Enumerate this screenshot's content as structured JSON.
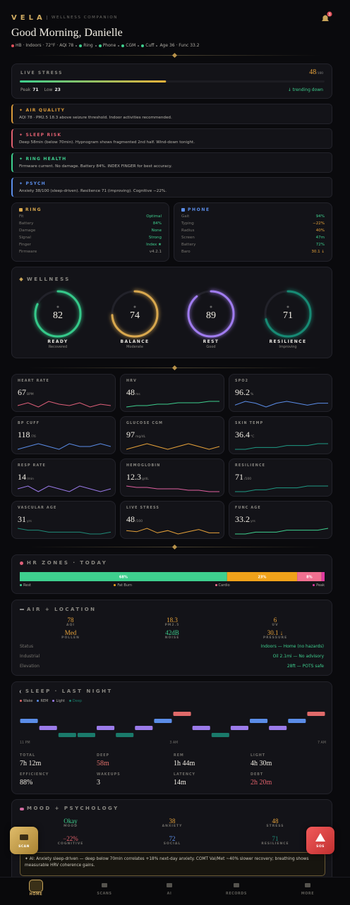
{
  "header": {
    "brand": "VELA",
    "tagline": "WELLNESS COMPANION",
    "notifications": 3,
    "greeting": "Good Morning, Danielle",
    "status": [
      {
        "text": "HB · Indoors · 72°F · AQI 78"
      },
      {
        "text": "Ring",
        "color": "#3ecf8e"
      },
      {
        "text": "Phone",
        "color": "#3ecf8e"
      },
      {
        "text": "CGM",
        "color": "#3ecf8e"
      },
      {
        "text": "Cuff",
        "color": "#3ecf8e"
      },
      {
        "text": "Age 36 · Func 33.2"
      }
    ]
  },
  "live_stress": {
    "label": "LIVE STRESS",
    "value": 48,
    "unit": "/100",
    "range": [
      0,
      100
    ],
    "peak_label": "Peak",
    "peak": 71,
    "low_label": "Low",
    "low": 23,
    "trend": "↓ trending down"
  },
  "alerts": [
    {
      "title": "✦ AIR QUALITY",
      "text": "AQI 78 · PM2.5 18.3 above seizure threshold. Indoor activities recommended.",
      "color": "#d99a3a"
    },
    {
      "title": "✦ SLEEP RISK",
      "text": "Deep 58min (below 70min). Hypnogram shows fragmented 2nd half. Wind-down tonight.",
      "color": "#e06070"
    },
    {
      "title": "✦ RING HEALTH",
      "text": "Firmware current. No damage. Battery 84%. INDEX FINGER for best accuracy.",
      "color": "#3ecf8e"
    },
    {
      "title": "✦ PSYCH",
      "text": "Anxiety 38/100 (sleep-driven). Resilience 71 (improving). Cognitive −22%.",
      "color": "#5b8de8"
    }
  ],
  "ring": {
    "title": "RING",
    "color": "#d9a84e",
    "rows": [
      {
        "label": "Fit",
        "value": "Optimal",
        "color": "#3ecf8e"
      },
      {
        "label": "Battery",
        "value": "84%",
        "color": "#3ecf8e"
      },
      {
        "label": "Damage",
        "value": "None",
        "color": "#3ecf8e"
      },
      {
        "label": "Signal",
        "value": "Strong",
        "color": "#3ecf8e"
      },
      {
        "label": "Finger",
        "value": "Index ★",
        "color": "#3ecf8e"
      },
      {
        "label": "Firmware",
        "value": "v4.2.1",
        "color": "#9a9890"
      }
    ]
  },
  "phone": {
    "title": "PHONE",
    "color": "#5b8de8",
    "rows": [
      {
        "label": "Gait",
        "value": "94%",
        "color": "#3ecf8e"
      },
      {
        "label": "Typing",
        "value": "−22%",
        "color": "#e8a33a"
      },
      {
        "label": "Radius",
        "value": "40%",
        "color": "#e8a33a"
      },
      {
        "label": "Screen",
        "value": "47m",
        "color": "#3ecf8e"
      },
      {
        "label": "Battery",
        "value": "72%",
        "color": "#3ecf8e"
      },
      {
        "label": "Baro",
        "value": "30.1 ↓",
        "color": "#e8a33a"
      }
    ]
  },
  "wellness": {
    "title": "WELLNESS",
    "range": [
      0,
      100
    ],
    "scores": [
      {
        "value": 82,
        "label": "READY",
        "status": "Recovered",
        "color": "#35c98a"
      },
      {
        "value": 74,
        "label": "BALANCE",
        "status": "Moderate",
        "color": "#d9a84e"
      },
      {
        "value": 89,
        "label": "REST",
        "status": "Good",
        "color": "#a07cf0"
      },
      {
        "value": 71,
        "label": "RESILIENCE",
        "status": "Improving",
        "color": "#178a74"
      }
    ]
  },
  "metrics": [
    {
      "label": "HEART RATE",
      "value": 67,
      "unit": "BPM",
      "color": "#e0607a",
      "trend": [
        66,
        68,
        65,
        69,
        67,
        66,
        68,
        65,
        67,
        66
      ]
    },
    {
      "label": "HRV",
      "value": 48,
      "unit": "ms",
      "color": "#3ecf8e",
      "trend": [
        45,
        46,
        46,
        47,
        47,
        48,
        48,
        48,
        49,
        49
      ]
    },
    {
      "label": "SPO2",
      "value": 96.2,
      "unit": "%",
      "color": "#5b8de8",
      "trend": [
        96.1,
        96.3,
        96.2,
        96.0,
        96.2,
        96.3,
        96.2,
        96.1,
        96.2,
        96.2
      ]
    },
    {
      "label": "BP CUFF",
      "value": 118,
      "unit": "/76",
      "color": "#5b8de8",
      "trend": [
        117,
        118,
        119,
        118,
        117,
        119,
        118,
        118,
        119,
        118
      ]
    },
    {
      "label": "GLUCOSE CGM",
      "value": 97,
      "unit": "mg/dL",
      "color": "#e8a33a",
      "trend": [
        96,
        97,
        98,
        97,
        96,
        97,
        98,
        97,
        96,
        97
      ]
    },
    {
      "label": "SKIN TEMP",
      "value": 36.4,
      "unit": "°C",
      "color": "#1f9a84",
      "trend": [
        36.2,
        36.2,
        36.3,
        36.3,
        36.3,
        36.4,
        36.4,
        36.4,
        36.5,
        36.5
      ]
    },
    {
      "label": "RESP RATE",
      "value": 14,
      "unit": "/min",
      "color": "#9b7bea",
      "trend": [
        14,
        15,
        13,
        15,
        14,
        13,
        15,
        14,
        13,
        14
      ]
    },
    {
      "label": "HEMOGLOBIN",
      "value": 12.3,
      "unit": "g/dL",
      "color": "#e060a0",
      "trend": [
        12.6,
        12.5,
        12.5,
        12.4,
        12.4,
        12.4,
        12.3,
        12.3,
        12.2,
        12.2
      ]
    },
    {
      "label": "RESILIENCE",
      "value": 71,
      "unit": "/100",
      "color": "#1f9a84",
      "trend": [
        68,
        68,
        69,
        69,
        70,
        70,
        70,
        71,
        71,
        71
      ]
    },
    {
      "label": "VASCULAR AGE",
      "value": 31,
      "unit": "yrs",
      "color": "#1f8a78",
      "trend": [
        31.2,
        31.1,
        31.1,
        31.0,
        31.0,
        31.0,
        31.0,
        30.9,
        30.9,
        31.0
      ]
    },
    {
      "label": "LIVE STRESS",
      "value": 48,
      "unit": "/100",
      "color": "#e8a33a",
      "trend": [
        50,
        49,
        52,
        48,
        50,
        47,
        49,
        51,
        48,
        48
      ]
    },
    {
      "label": "FUNC AGE",
      "value": 33.2,
      "unit": "yrs",
      "color": "#3ecf8e",
      "trend": [
        33.0,
        33.0,
        33.1,
        33.1,
        33.1,
        33.2,
        33.2,
        33.2,
        33.2,
        33.3
      ]
    }
  ],
  "hr_zones": {
    "title": "HR ZONES · TODAY",
    "zones": [
      {
        "name": "Rest",
        "value": 68,
        "value_label": "68%",
        "color": "#3ecf8e"
      },
      {
        "name": "Fat Burn",
        "value": 23,
        "value_label": "23%",
        "color": "#f0a21a"
      },
      {
        "name": "Cardio",
        "value": 8,
        "value_label": "8%",
        "color": "#f07090"
      },
      {
        "name": "Peak",
        "value": 1,
        "color": "#e03aa0"
      }
    ]
  },
  "air": {
    "title": "AIR + LOCATION",
    "stats": [
      {
        "value": 78,
        "label": "AQI",
        "color": "#e8a33a"
      },
      {
        "value": 18.3,
        "label": "PM2.5",
        "color": "#e8a33a"
      },
      {
        "value": 6,
        "label": "UV",
        "color": "#e8a33a"
      },
      {
        "value": "Med",
        "label": "POLLEN",
        "color": "#e8a33a"
      },
      {
        "value": "42dB",
        "label": "NOISE",
        "color": "#3ecf8e"
      },
      {
        "value": "30.1 ↓",
        "label": "PRESSURE",
        "color": "#e8a33a"
      }
    ],
    "rows": [
      {
        "label": "Status",
        "value": "Indoors — Home (no hazards)"
      },
      {
        "label": "Industrial",
        "value": "Oil 2.1mi — No advisory"
      },
      {
        "label": "Elevation",
        "value": "28ft — POTS safe"
      }
    ]
  },
  "sleep": {
    "title": "SLEEP · LAST NIGHT",
    "stages": [
      {
        "name": "Wake",
        "color": "#e06a6a"
      },
      {
        "name": "REM",
        "color": "#5b8de8"
      },
      {
        "name": "Light",
        "color": "#9b7bea"
      },
      {
        "name": "Deep",
        "color": "#1a7a6a"
      }
    ],
    "hypnogram": [
      "REM",
      "Light",
      "Deep",
      "Deep",
      "Light",
      "Deep",
      "Light",
      "REM",
      "Wake",
      "Light",
      "Deep",
      "Light",
      "REM",
      "Light",
      "REM",
      "Wake"
    ],
    "time_labels": [
      "11 PM",
      "3 AM",
      "7 AM"
    ],
    "stats": [
      {
        "label": "TOTAL",
        "value": "7h 12m"
      },
      {
        "label": "DEEP",
        "value": "58m",
        "color": "#e0706a"
      },
      {
        "label": "REM",
        "value": "1h 44m"
      },
      {
        "label": "LIGHT",
        "value": "4h 30m"
      },
      {
        "label": "EFFICIENCY",
        "value": "88%"
      },
      {
        "label": "WAKEUPS",
        "value": 3
      },
      {
        "label": "LATENCY",
        "value": "14m"
      },
      {
        "label": "DEBT",
        "value": "2h 20m",
        "color": "#e0606a"
      }
    ]
  },
  "mood": {
    "title": "MOOD + PSYCHOLOGY",
    "stats": [
      {
        "value": "Okay",
        "label": "MOOD",
        "color": "#3ecf8e"
      },
      {
        "value": 38,
        "label": "ANXIETY",
        "color": "#e8a33a"
      },
      {
        "value": 48,
        "label": "STRESS",
        "color": "#e8a33a"
      },
      {
        "value": "−22%",
        "label": "COGNITIVE",
        "color": "#e0606a"
      },
      {
        "value": 72,
        "label": "SOCIAL",
        "color": "#5b8de8"
      },
      {
        "value": 71,
        "label": "RESILIENCE",
        "color": "#1f8a78"
      }
    ],
    "insight": "✦ AI: Anxiety sleep-driven — deep below 70min correlates +18% next-day anxiety. COMT Val/Met ~40% slower recovery; breathing shows measurable HRV coherence gains."
  },
  "actions": {
    "scan": "SCAN",
    "sos": "SOS"
  },
  "nav": [
    "HOME",
    "SCANS",
    "AI",
    "RECORDS",
    "MORE"
  ]
}
